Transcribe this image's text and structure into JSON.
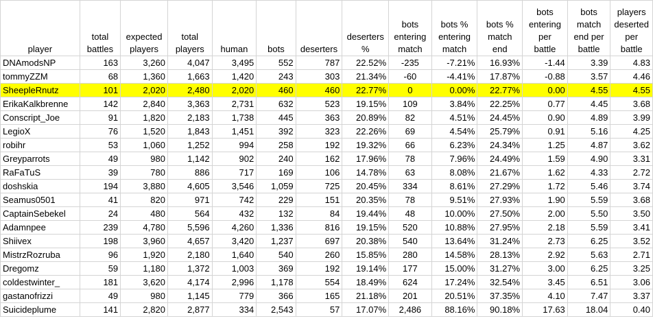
{
  "headers": [
    [
      "player"
    ],
    [
      "total",
      "battles"
    ],
    [
      "expected",
      "players"
    ],
    [
      "total",
      "players"
    ],
    [
      "human"
    ],
    [
      "bots"
    ],
    [
      "deserters"
    ],
    [
      "deserters",
      "%"
    ],
    [
      "bots",
      "entering",
      "match"
    ],
    [
      "bots %",
      "entering",
      "match"
    ],
    [
      "bots %",
      "match",
      "end"
    ],
    [
      "bots",
      "entering",
      "per",
      "battle"
    ],
    [
      "bots",
      "match",
      "end per",
      "battle"
    ],
    [
      "players",
      "deserted",
      "per",
      "battle"
    ]
  ],
  "rows": [
    [
      "DNAmodsNP",
      "163",
      "3,260",
      "4,047",
      "3,495",
      "552",
      "787",
      "22.52%",
      "-235",
      "-7.21%",
      "16.93%",
      "-1.44",
      "3.39",
      "4.83"
    ],
    [
      "tommyZZM",
      "68",
      "1,360",
      "1,663",
      "1,420",
      "243",
      "303",
      "21.34%",
      "-60",
      "-4.41%",
      "17.87%",
      "-0.88",
      "3.57",
      "4.46"
    ],
    [
      "SheepleRnutz",
      "101",
      "2,020",
      "2,480",
      "2,020",
      "460",
      "460",
      "22.77%",
      "0",
      "0.00%",
      "22.77%",
      "0.00",
      "4.55",
      "4.55"
    ],
    [
      "ErikaKalkbrenne",
      "142",
      "2,840",
      "3,363",
      "2,731",
      "632",
      "523",
      "19.15%",
      "109",
      "3.84%",
      "22.25%",
      "0.77",
      "4.45",
      "3.68"
    ],
    [
      "Conscript_Joe",
      "91",
      "1,820",
      "2,183",
      "1,738",
      "445",
      "363",
      "20.89%",
      "82",
      "4.51%",
      "24.45%",
      "0.90",
      "4.89",
      "3.99"
    ],
    [
      "LegioX",
      "76",
      "1,520",
      "1,843",
      "1,451",
      "392",
      "323",
      "22.26%",
      "69",
      "4.54%",
      "25.79%",
      "0.91",
      "5.16",
      "4.25"
    ],
    [
      "robihr",
      "53",
      "1,060",
      "1,252",
      "994",
      "258",
      "192",
      "19.32%",
      "66",
      "6.23%",
      "24.34%",
      "1.25",
      "4.87",
      "3.62"
    ],
    [
      "Greyparrots",
      "49",
      "980",
      "1,142",
      "902",
      "240",
      "162",
      "17.96%",
      "78",
      "7.96%",
      "24.49%",
      "1.59",
      "4.90",
      "3.31"
    ],
    [
      "RaFaTuS",
      "39",
      "780",
      "886",
      "717",
      "169",
      "106",
      "14.78%",
      "63",
      "8.08%",
      "21.67%",
      "1.62",
      "4.33",
      "2.72"
    ],
    [
      "doshskia",
      "194",
      "3,880",
      "4,605",
      "3,546",
      "1,059",
      "725",
      "20.45%",
      "334",
      "8.61%",
      "27.29%",
      "1.72",
      "5.46",
      "3.74"
    ],
    [
      "Seamus0501",
      "41",
      "820",
      "971",
      "742",
      "229",
      "151",
      "20.35%",
      "78",
      "9.51%",
      "27.93%",
      "1.90",
      "5.59",
      "3.68"
    ],
    [
      "CaptainSebekel",
      "24",
      "480",
      "564",
      "432",
      "132",
      "84",
      "19.44%",
      "48",
      "10.00%",
      "27.50%",
      "2.00",
      "5.50",
      "3.50"
    ],
    [
      "Adamnpee",
      "239",
      "4,780",
      "5,596",
      "4,260",
      "1,336",
      "816",
      "19.15%",
      "520",
      "10.88%",
      "27.95%",
      "2.18",
      "5.59",
      "3.41"
    ],
    [
      "Shiivex",
      "198",
      "3,960",
      "4,657",
      "3,420",
      "1,237",
      "697",
      "20.38%",
      "540",
      "13.64%",
      "31.24%",
      "2.73",
      "6.25",
      "3.52"
    ],
    [
      "MistrzRozruba",
      "96",
      "1,920",
      "2,180",
      "1,640",
      "540",
      "260",
      "15.85%",
      "280",
      "14.58%",
      "28.13%",
      "2.92",
      "5.63",
      "2.71"
    ],
    [
      "Dregomz",
      "59",
      "1,180",
      "1,372",
      "1,003",
      "369",
      "192",
      "19.14%",
      "177",
      "15.00%",
      "31.27%",
      "3.00",
      "6.25",
      "3.25"
    ],
    [
      "coldestwinter_",
      "181",
      "3,620",
      "4,174",
      "2,996",
      "1,178",
      "554",
      "18.49%",
      "624",
      "17.24%",
      "32.54%",
      "3.45",
      "6.51",
      "3.06"
    ],
    [
      "gastanofrizzi",
      "49",
      "980",
      "1,145",
      "779",
      "366",
      "165",
      "21.18%",
      "201",
      "20.51%",
      "37.35%",
      "4.10",
      "7.47",
      "3.37"
    ],
    [
      "Suicideplume",
      "141",
      "2,820",
      "2,877",
      "334",
      "2,543",
      "57",
      "17.07%",
      "2,486",
      "88.16%",
      "90.18%",
      "17.63",
      "18.04",
      "0.40"
    ]
  ],
  "highlight_row": 2,
  "highlight_color": "#ffff00"
}
